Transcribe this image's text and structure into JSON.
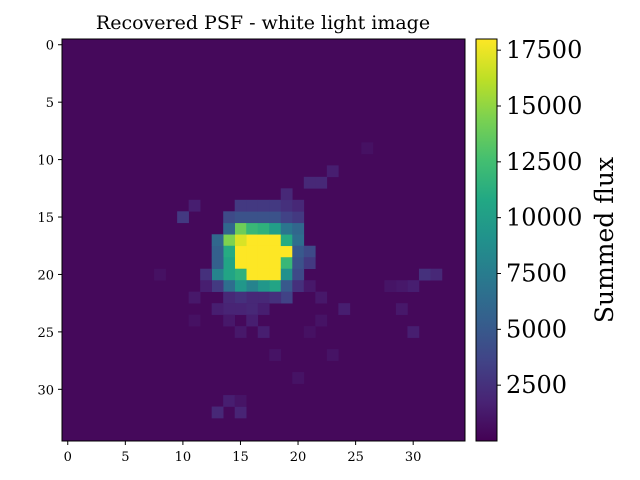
{
  "chart_data": {
    "type": "heatmap",
    "title": "Recovered PSF - white light image",
    "grid": false,
    "x_range": [
      -0.5,
      34.5
    ],
    "y_range": [
      -0.5,
      34.5
    ],
    "y_inverted": true,
    "x_ticks": [
      0,
      5,
      10,
      15,
      20,
      25,
      30
    ],
    "y_ticks": [
      0,
      5,
      10,
      15,
      20,
      25,
      30
    ],
    "x_tick_labels": [
      "0",
      "5",
      "10",
      "15",
      "20",
      "25",
      "30"
    ],
    "y_tick_labels": [
      "0",
      "5",
      "10",
      "15",
      "20",
      "25",
      "30"
    ],
    "colormap": "viridis",
    "colorbar": {
      "label": "Summed flux",
      "range": [
        0,
        18000
      ],
      "ticks": [
        2500,
        5000,
        7500,
        10000,
        12500,
        15000,
        17500
      ],
      "tick_labels": [
        "2500",
        "5000",
        "7500",
        "10000",
        "12500",
        "15000",
        "17500"
      ]
    },
    "background_value": 400,
    "cells": [
      [
        16,
        17,
        18000
      ],
      [
        17,
        17,
        18000
      ],
      [
        18,
        17,
        18000
      ],
      [
        16,
        18,
        18000
      ],
      [
        17,
        18,
        18000
      ],
      [
        18,
        18,
        18000
      ],
      [
        16,
        19,
        18000
      ],
      [
        17,
        19,
        18000
      ],
      [
        18,
        19,
        18000
      ],
      [
        16,
        20,
        18000
      ],
      [
        17,
        20,
        18000
      ],
      [
        18,
        20,
        18000
      ],
      [
        15,
        18,
        18000
      ],
      [
        15,
        19,
        18000
      ],
      [
        19,
        18,
        18000
      ],
      [
        15,
        17,
        17000
      ],
      [
        14,
        17,
        14500
      ],
      [
        15,
        16,
        14000
      ],
      [
        19,
        19,
        12000
      ],
      [
        14,
        18,
        11000
      ],
      [
        14,
        19,
        10500
      ],
      [
        19,
        17,
        11000
      ],
      [
        15,
        20,
        11500
      ],
      [
        16,
        16,
        12000
      ],
      [
        17,
        16,
        11500
      ],
      [
        18,
        16,
        10000
      ],
      [
        19,
        16,
        7000
      ],
      [
        20,
        17,
        6500
      ],
      [
        20,
        16,
        6000
      ],
      [
        14,
        16,
        6000
      ],
      [
        14,
        20,
        10500
      ],
      [
        13,
        20,
        8000
      ],
      [
        19,
        20,
        9000
      ],
      [
        18,
        21,
        10500
      ],
      [
        17,
        21,
        9500
      ],
      [
        16,
        21,
        8000
      ],
      [
        15,
        21,
        9500
      ],
      [
        14,
        21,
        6500
      ],
      [
        13,
        19,
        5500
      ],
      [
        13,
        18,
        5500
      ],
      [
        13,
        17,
        6000
      ],
      [
        20,
        18,
        5000
      ],
      [
        20,
        19,
        4500
      ],
      [
        21,
        18,
        4000
      ],
      [
        14,
        15,
        4000
      ],
      [
        15,
        15,
        4500
      ],
      [
        16,
        15,
        4500
      ],
      [
        17,
        15,
        4500
      ],
      [
        18,
        15,
        4500
      ],
      [
        19,
        15,
        3500
      ],
      [
        15,
        14,
        3000
      ],
      [
        16,
        14,
        3000
      ],
      [
        17,
        14,
        3000
      ],
      [
        18,
        14,
        3000
      ],
      [
        19,
        14,
        2500
      ],
      [
        20,
        20,
        4000
      ],
      [
        21,
        19,
        3000
      ],
      [
        13,
        21,
        3000
      ],
      [
        12,
        20,
        2500
      ],
      [
        19,
        21,
        5000
      ],
      [
        19,
        22,
        3500
      ],
      [
        18,
        22,
        2500
      ],
      [
        17,
        22,
        2000
      ],
      [
        16,
        22,
        2000
      ],
      [
        15,
        22,
        2500
      ],
      [
        14,
        22,
        2000
      ],
      [
        20,
        21,
        2500
      ],
      [
        20,
        15,
        3000
      ],
      [
        20,
        14,
        2000
      ],
      [
        19,
        13,
        2000
      ],
      [
        10,
        15,
        3000
      ],
      [
        11,
        14,
        1500
      ],
      [
        21,
        12,
        2000
      ],
      [
        22,
        12,
        2000
      ],
      [
        23,
        11,
        1500
      ],
      [
        16,
        23,
        2000
      ],
      [
        15,
        23,
        1800
      ],
      [
        14,
        23,
        1800
      ],
      [
        13,
        23,
        1500
      ],
      [
        17,
        23,
        1500
      ],
      [
        16,
        24,
        1500
      ],
      [
        17,
        25,
        1500
      ],
      [
        15,
        25,
        1200
      ],
      [
        12,
        21,
        1500
      ],
      [
        11,
        22,
        1200
      ],
      [
        14,
        24,
        1200
      ],
      [
        24,
        23,
        1500
      ],
      [
        22,
        22,
        1200
      ],
      [
        21,
        21,
        1200
      ],
      [
        31,
        20,
        2500
      ],
      [
        32,
        20,
        2000
      ],
      [
        30,
        21,
        1500
      ],
      [
        29,
        21,
        1200
      ],
      [
        28,
        21,
        1000
      ],
      [
        29,
        23,
        1200
      ],
      [
        30,
        25,
        1500
      ],
      [
        26,
        9,
        800
      ],
      [
        23,
        27,
        900
      ],
      [
        20,
        29,
        900
      ],
      [
        14,
        31,
        1500
      ],
      [
        13,
        32,
        2000
      ],
      [
        15,
        32,
        1800
      ],
      [
        15,
        31,
        1000
      ],
      [
        18,
        27,
        900
      ],
      [
        8,
        20,
        800
      ],
      [
        22,
        24,
        900
      ],
      [
        11,
        24,
        800
      ],
      [
        21,
        25,
        800
      ]
    ]
  }
}
